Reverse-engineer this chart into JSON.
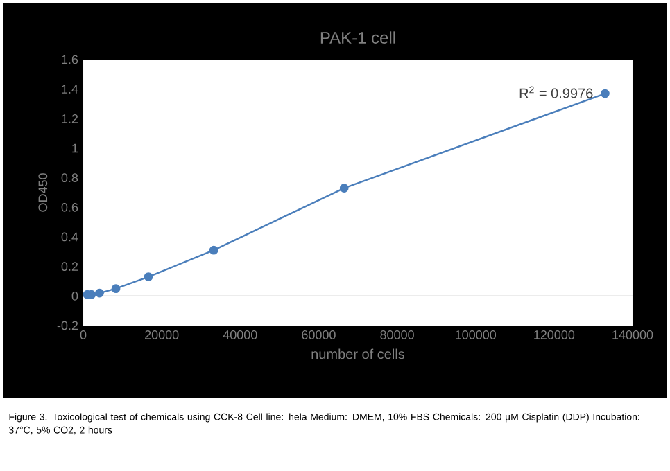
{
  "chart_data": {
    "type": "line",
    "title": "PAK-1 cell",
    "xlabel": "number of  cells",
    "ylabel": "OD450",
    "series": [
      {
        "color": "#4a7ebb",
        "x": [
          1039,
          2078,
          4156,
          8312,
          16625,
          33250,
          66500,
          133000
        ],
        "values": [
          0.01,
          0.01,
          0.02,
          0.05,
          0.13,
          0.31,
          0.73,
          1.37
        ]
      }
    ],
    "ref_lines": [
      {
        "axis": "y",
        "value": 0,
        "color": "#d9d9d9"
      }
    ],
    "xlim": [
      0,
      140000
    ],
    "xticks": [
      0,
      20000,
      40000,
      60000,
      80000,
      100000,
      120000,
      140000
    ],
    "ylim": [
      -0.2,
      1.6
    ],
    "yticks": [
      -0.2,
      0,
      0.2,
      0.4,
      0.6,
      0.8,
      1,
      1.2,
      1.4,
      1.6
    ],
    "marker": "circle",
    "line_style": "solid",
    "annotations": [
      {
        "text": "R$^{2}$ = 0.9976",
        "x": 133000,
        "y": 1.37
      },
      "Figure 3. Toxicological test of chemicals using CCK-8  Cell line: hela Medium: DMEM, 10% FBS Chemicals: 200 µM Cisplatin (DDP) Incubation: 37°C, 5% CO2, 2 hours"
    ]
  }
}
